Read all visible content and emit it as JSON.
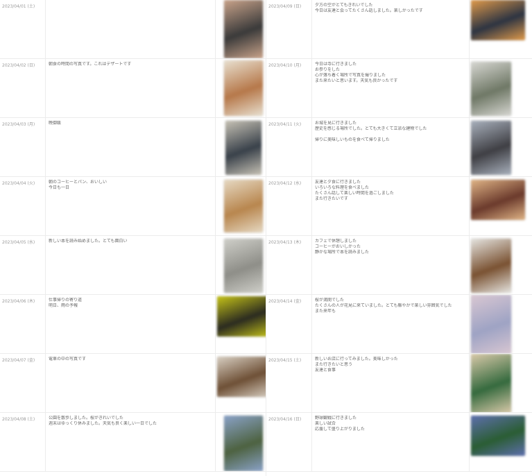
{
  "entries_left": [
    {
      "date": "2023/04/01 (土)",
      "lines": [
        ""
      ],
      "photo": "food-photo",
      "colors": [
        "#3a3a3a",
        "#c9a38a"
      ]
    },
    {
      "date": "2023/04/02 (日)",
      "lines": [
        "朝食の時間の写真です。これはデザートです"
      ],
      "photo": "food-photo",
      "colors": [
        "#b6784a",
        "#e8e0d0"
      ]
    },
    {
      "date": "2023/04/03 (月)",
      "lines": [
        "晩御飯"
      ],
      "photo": "bottle-photo",
      "colors": [
        "#39414a",
        "#c7c2b5"
      ]
    },
    {
      "date": "2023/04/04 (火)",
      "lines": [
        "朝のコーヒーとパン、おいしい",
        "今日も一日"
      ],
      "photo": "coffee-photo",
      "colors": [
        "#b8864e",
        "#e6d9c3"
      ]
    },
    {
      "date": "2023/04/05 (水)",
      "lines": [
        "新しい本を読み始めました。とても面白い"
      ],
      "photo": "object-photo",
      "colors": [
        "#8e8e88",
        "#cfcfc9"
      ]
    },
    {
      "date": "2023/04/06 (木)",
      "lines": [
        "仕事帰りの寄り道",
        "明日、雨の予報"
      ],
      "photo": "sign-photo",
      "colors": [
        "#2b2b20",
        "#c6c418"
      ]
    },
    {
      "date": "2023/04/07 (金)",
      "lines": [
        "電車の中の写真です"
      ],
      "photo": "train-photo",
      "colors": [
        "#6e5036",
        "#d8cfc2"
      ]
    },
    {
      "date": "2023/04/08 (土)",
      "lines": [
        "公園を散歩しました。桜がきれいでした",
        "週末はゆっくり休みました。天気も良く楽しい一日でした"
      ],
      "photo": "park-photo",
      "colors": [
        "#4d6240",
        "#8aa2c8"
      ]
    }
  ],
  "entries_right": [
    {
      "date": "2023/04/09 (日)",
      "lines": [
        "夕方の空がとてもきれいでした",
        "今日は友達と会ってたくさん話しました。楽しかったです"
      ],
      "photo": "sunset-photo",
      "colors": [
        "#2d3442",
        "#e09a4a"
      ]
    },
    {
      "date": "2023/04/10 (月)",
      "lines": [
        "今日は寺に行きました",
        "お参りをした",
        "心が落ち着く場所で写真を撮りました",
        "また来たいと思います。天気も良かったです"
      ],
      "photo": "temple-photo",
      "colors": [
        "#6f7866",
        "#d7d7d2"
      ]
    },
    {
      "date": "2023/04/11 (火)",
      "lines": [
        "お城を見に行きました",
        "歴史を感じる場所でした。とても大きくて立派な建物でした",
        "",
        "帰りに美味しいものを食べて帰りました"
      ],
      "photo": "castle-photo",
      "colors": [
        "#3f3f44",
        "#a9b1bd"
      ]
    },
    {
      "date": "2023/04/12 (水)",
      "lines": [
        "友達と夕食に行きました",
        "いろいろな料理を食べました",
        "たくさん話して楽しい時間を過ごしました",
        "また行きたいです"
      ],
      "photo": "dinner-photo",
      "colors": [
        "#6b3a2c",
        "#e0b486"
      ]
    },
    {
      "date": "2023/04/13 (木)",
      "lines": [
        "カフェで休憩しました",
        "コーヒーがおいしかった",
        "静かな場所で本を読みました"
      ],
      "photo": "cafe-photo",
      "colors": [
        "#7a5232",
        "#e5e4e0"
      ]
    },
    {
      "date": "2023/04/14 (金)",
      "lines": [
        "桜が満開でした",
        "たくさんの人が花見に来ていました。とても賑やかで楽しい雰囲気でした",
        "また来年も"
      ],
      "photo": "blossom-photo",
      "colors": [
        "#9ea3c4",
        "#d9c7d2"
      ]
    },
    {
      "date": "2023/04/15 (土)",
      "lines": [
        "新しいお店に行ってみました。美味しかった",
        "また行きたいと思う",
        "友達と食事"
      ],
      "photo": "table-photo",
      "colors": [
        "#356a3e",
        "#d9c9a9"
      ]
    },
    {
      "date": "2023/04/16 (日)",
      "lines": [
        "野球観戦に行きました",
        "楽しい試合",
        "応援して盛り上がりました"
      ],
      "photo": "stadium-photo",
      "colors": [
        "#2a5d33",
        "#5e6fae"
      ]
    }
  ]
}
